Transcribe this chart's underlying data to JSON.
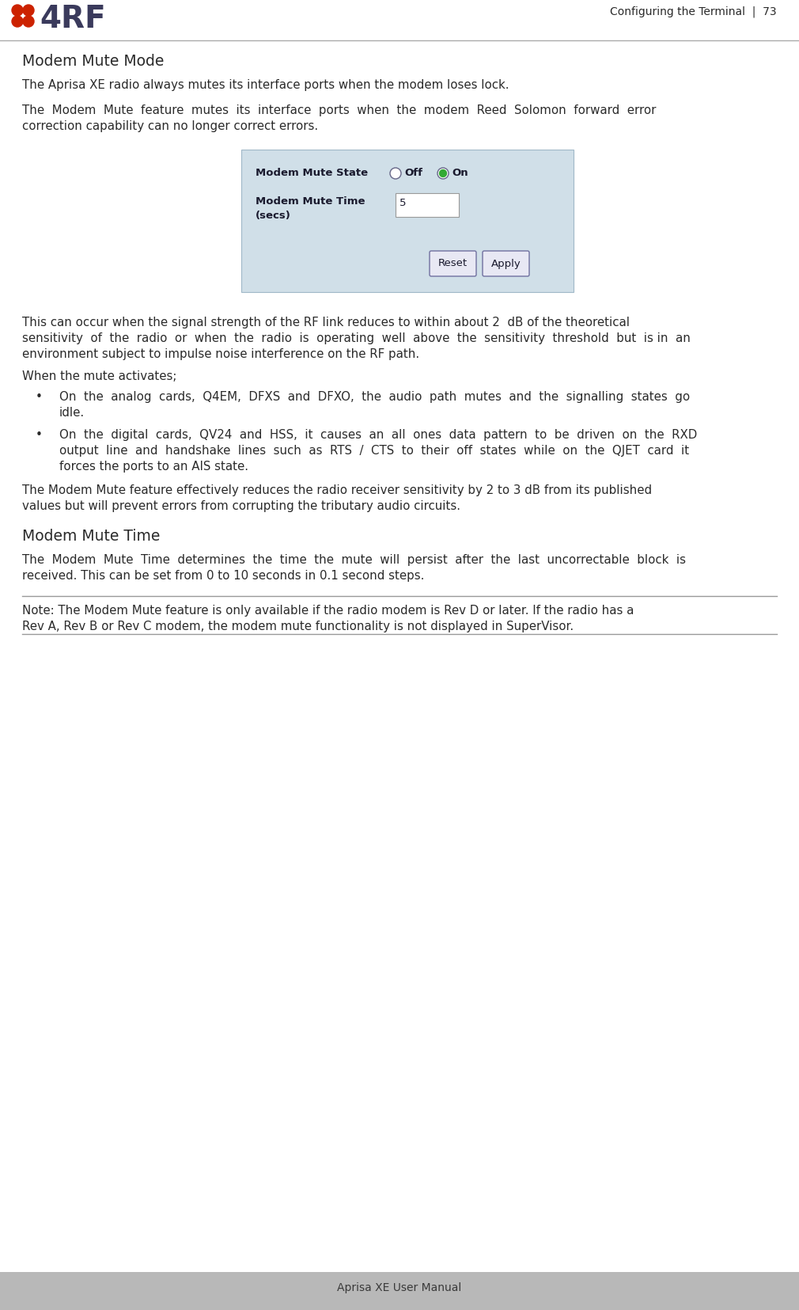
{
  "page_width": 10.1,
  "page_height": 16.56,
  "dpi": 100,
  "bg_color": "#ffffff",
  "line_color": "#aaaaaa",
  "header_text": "Configuring the Terminal  |  73",
  "footer_text": "Aprisa XE User Manual",
  "logo_color": "#3a3a5c",
  "logo_dot_color": "#cc2200",
  "title_modem_mute_mode": "Modem Mute Mode",
  "title_modem_mute_time": "Modem Mute Time",
  "body_font_size": 10.8,
  "title_font_size": 13.5,
  "header_font_size": 10,
  "text_color": "#2a2a2a",
  "dark_text": "#1a1a2e",
  "panel_bg": "#d0dfe8",
  "panel_border": "#a0b8c8",
  "note_line_color": "#999999",
  "footer_bg": "#b0b0b0",
  "para1": "The Aprisa XE radio always mutes its interface ports when the modem loses lock.",
  "para2_line1": "The  Modem  Mute  feature  mutes  its  interface  ports  when  the  modem  Reed  Solomon  forward  error",
  "para2_line2": "correction capability can no longer correct errors.",
  "para3_line1": "This can occur when the signal strength of the RF link reduces to within about 2  dB of the theoretical",
  "para3_line2": "sensitivity  of  the  radio  or  when  the  radio  is  operating  well  above  the  sensitivity  threshold  but  is in  an",
  "para3_line3": "environment subject to impulse noise interference on the RF path.",
  "when_mute": "When the mute activates;",
  "bullet1_line1": "On  the  analog  cards,  Q4EM,  DFXS  and  DFXO,  the  audio  path  mutes  and  the  signalling  states  go",
  "bullet1_line2": "idle.",
  "bullet2_line1": "On  the  digital  cards,  QV24  and  HSS,  it  causes  an  all  ones  data  pattern  to  be  driven  on  the  RXD",
  "bullet2_line2": "output  line  and  handshake  lines  such  as  RTS  /  CTS  to  their  off  states  while  on  the  QJET  card  it",
  "bullet2_line3": "forces the ports to an AIS state.",
  "para4_line1": "The Modem Mute feature effectively reduces the radio receiver sensitivity by 2 to 3 dB from its published",
  "para4_line2": "values but will prevent errors from corrupting the tributary audio circuits.",
  "para5_line1": "The  Modem  Mute  Time  determines  the  time  the  mute  will  persist  after  the  last  uncorrectable  block  is",
  "para5_line2": "received. This can be set from 0 to 10 seconds in 0.1 second steps.",
  "note_line1": "Note: The Modem Mute feature is only available if the radio modem is Rev D or later. If the radio has a",
  "note_line2": "Rev A, Rev B or Rev C modem, the modem mute functionality is not displayed in SuperVisor."
}
